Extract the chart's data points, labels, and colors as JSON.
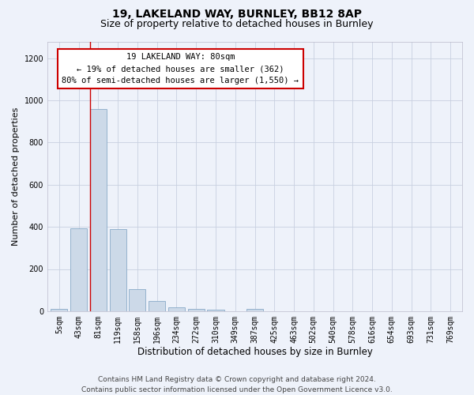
{
  "title1": "19, LAKELAND WAY, BURNLEY, BB12 8AP",
  "title2": "Size of property relative to detached houses in Burnley",
  "xlabel": "Distribution of detached houses by size in Burnley",
  "ylabel": "Number of detached properties",
  "categories": [
    "5sqm",
    "43sqm",
    "81sqm",
    "119sqm",
    "158sqm",
    "196sqm",
    "234sqm",
    "272sqm",
    "310sqm",
    "349sqm",
    "387sqm",
    "425sqm",
    "463sqm",
    "502sqm",
    "540sqm",
    "578sqm",
    "616sqm",
    "654sqm",
    "693sqm",
    "731sqm",
    "769sqm"
  ],
  "values": [
    10,
    395,
    960,
    390,
    105,
    48,
    20,
    12,
    8,
    0,
    10,
    0,
    0,
    0,
    0,
    0,
    0,
    0,
    0,
    0,
    0
  ],
  "bar_color": "#ccd9e8",
  "bar_edge_color": "#89aac8",
  "red_line_bar_index": 2,
  "annotation_line1": "19 LAKELAND WAY: 80sqm",
  "annotation_line2": "← 19% of detached houses are smaller (362)",
  "annotation_line3": "80% of semi-detached houses are larger (1,550) →",
  "ylim_max": 1280,
  "yticks": [
    0,
    200,
    400,
    600,
    800,
    1000,
    1200
  ],
  "footer1": "Contains HM Land Registry data © Crown copyright and database right 2024.",
  "footer2": "Contains public sector information licensed under the Open Government Licence v3.0.",
  "bg_color": "#eef2fa",
  "plot_bg_color": "#eef2fa",
  "grid_color": "#c8d0e0",
  "title1_fontsize": 10,
  "title2_fontsize": 9,
  "tick_fontsize": 7,
  "ylabel_fontsize": 8,
  "xlabel_fontsize": 8.5,
  "footer_fontsize": 6.5,
  "annotation_fontsize": 7.5,
  "bar_width": 0.85
}
